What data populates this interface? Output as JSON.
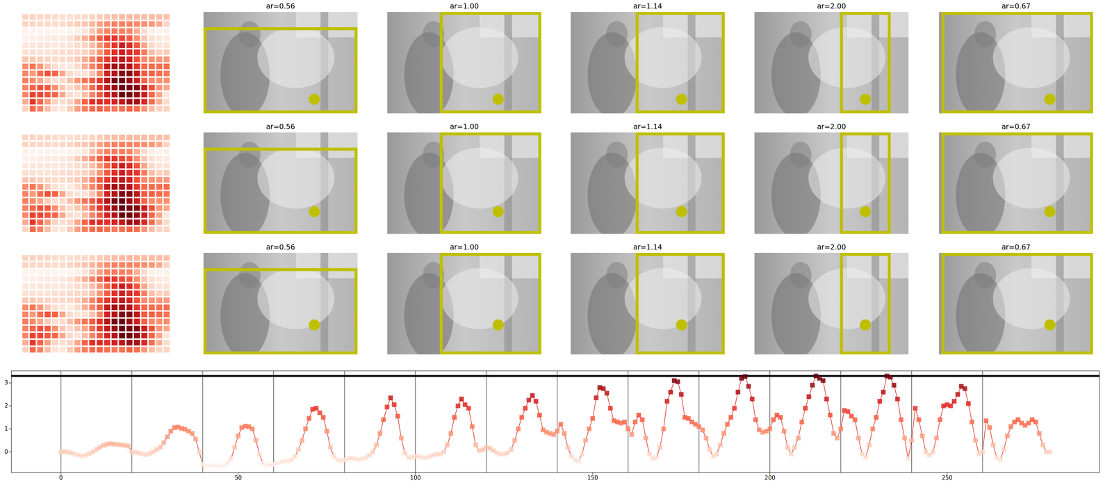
{
  "figure": {
    "color": "#bfbf00",
    "panels": [
      {
        "title": "ar=0.56",
        "ar": 0.56
      },
      {
        "title": "ar=1.00",
        "ar": 1.0
      },
      {
        "title": "ar=1.14",
        "ar": 1.14
      },
      {
        "title": "ar=2.00",
        "ar": 2.0
      },
      {
        "title": "ar=0.67",
        "ar": 0.67
      }
    ],
    "image_rows": [
      {
        "point": [
          0.72,
          0.86
        ]
      },
      {
        "point": [
          0.72,
          0.78
        ]
      },
      {
        "point": [
          0.72,
          0.71
        ]
      }
    ]
  },
  "chart_data": [
    {
      "type": "heatmap",
      "color": "Reds",
      "cells": [
        [
          0,
          0.02,
          -0.02,
          -0.05,
          -0.1,
          -0.15,
          -0.18,
          -0.15,
          -0.08,
          0,
          0.1,
          0.2,
          0.28,
          0.33,
          0.35,
          0.33,
          0.32,
          0.3,
          0.28,
          0.25
        ],
        [
          0,
          -0.02,
          -0.06,
          -0.1,
          -0.12,
          -0.08,
          0,
          0.1,
          0.2,
          0.4,
          0.65,
          0.9,
          1.05,
          1.08,
          1.02,
          0.98,
          0.9,
          0.8,
          0.55,
          0
        ],
        [
          -0.55,
          -0.6,
          -0.6,
          -0.6,
          -0.62,
          -0.65,
          -0.6,
          -0.5,
          -0.3,
          0.2,
          0.7,
          1.05,
          1.12,
          1.1,
          1.0,
          0.5,
          -0.1,
          -0.5,
          -0.6,
          -0.55
        ],
        [
          -0.55,
          -0.5,
          -0.45,
          -0.4,
          -0.4,
          -0.35,
          -0.2,
          0.1,
          0.5,
          1.0,
          1.45,
          1.85,
          1.9,
          1.7,
          1.5,
          0.9,
          0.2,
          -0.2,
          -0.35,
          -0.4
        ],
        [
          -0.35,
          -0.3,
          -0.28,
          -0.3,
          -0.35,
          -0.3,
          -0.25,
          -0.15,
          0,
          0.3,
          0.8,
          1.4,
          1.95,
          2.35,
          2.05,
          1.55,
          0.6,
          -0.05,
          -0.25,
          -0.25
        ],
        [
          -0.2,
          -0.2,
          -0.25,
          -0.25,
          -0.2,
          -0.15,
          -0.1,
          -0.1,
          0,
          0.3,
          0.8,
          1.5,
          2.0,
          2.3,
          2.05,
          1.9,
          1.1,
          0.3,
          0.05,
          0.1
        ],
        [
          0.2,
          0.15,
          0.05,
          -0.05,
          -0.1,
          -0.1,
          -0.05,
          0.1,
          0.5,
          1.0,
          1.5,
          1.9,
          2.25,
          2.45,
          2.2,
          1.6,
          0.95,
          0.85,
          0.8,
          0.75
        ],
        [
          0.9,
          1.2,
          0.8,
          0.2,
          -0.2,
          -0.35,
          -0.4,
          -0.1,
          0.5,
          1.0,
          1.45,
          2.35,
          2.8,
          2.75,
          2.55,
          1.9,
          1.35,
          1.3,
          1.25,
          1.3
        ],
        [
          1.0,
          0.75,
          1.3,
          1.6,
          1.4,
          0.6,
          -0.1,
          -0.3,
          -0.25,
          0.2,
          1.0,
          2.2,
          2.6,
          3.1,
          3.05,
          2.5,
          1.5,
          1.45,
          1.3,
          1.2
        ],
        [
          1.1,
          0.95,
          0.6,
          0.1,
          -0.2,
          -0.1,
          0.3,
          0.8,
          1.2,
          1.5,
          1.9,
          2.6,
          3.2,
          3.28,
          2.85,
          2.3,
          1.4,
          0.95,
          0.85,
          0.9
        ],
        [
          1.0,
          1.4,
          1.6,
          1.5,
          0.9,
          0.2,
          -0.1,
          0.2,
          0.6,
          1.3,
          1.9,
          2.4,
          2.9,
          3.3,
          3.2,
          3.1,
          2.3,
          1.6,
          0.8,
          0.6
        ],
        [
          1.0,
          1.8,
          1.75,
          1.55,
          1.4,
          0.6,
          -0.1,
          -0.25,
          0.3,
          1.0,
          1.5,
          2.2,
          2.6,
          3.3,
          3.25,
          2.9,
          2.3,
          1.4,
          0.6,
          -0.3
        ],
        [
          0.5,
          1.9,
          1.4,
          0.7,
          0,
          -0.15,
          0,
          0.6,
          1.4,
          2.0,
          2.05,
          2.0,
          2.2,
          2.5,
          2.85,
          2.75,
          2.1,
          1.3,
          0.5,
          -0.1
        ],
        [
          0,
          1.35,
          1.05,
          0.3,
          -0.25,
          -0.35,
          0.1,
          0.7,
          1.1,
          1.3,
          1.4,
          1.25,
          1.15,
          1.25,
          1.4,
          1.3,
          0.8,
          0.3,
          0,
          0
        ]
      ]
    },
    {
      "type": "line",
      "color": "#d7301f",
      "marker": "square",
      "xlim": [
        -14,
        293
      ],
      "xticks": [
        0,
        50,
        100,
        150,
        200,
        250
      ],
      "ylim": [
        -0.9,
        3.52
      ],
      "yticks": [
        0,
        1,
        2,
        3
      ],
      "vlines": [
        0,
        20,
        40,
        60,
        80,
        100,
        120,
        140,
        160,
        180,
        200,
        220,
        240,
        260
      ],
      "hlines": [
        3.3
      ],
      "x": [
        0,
        1,
        2,
        3,
        4,
        5,
        6,
        7,
        8,
        9,
        10,
        11,
        12,
        13,
        14,
        15,
        16,
        17,
        18,
        19,
        20,
        21,
        22,
        23,
        24,
        25,
        26,
        27,
        28,
        29,
        30,
        31,
        32,
        33,
        34,
        35,
        36,
        37,
        38,
        39,
        40,
        41,
        42,
        43,
        44,
        45,
        46,
        47,
        48,
        49,
        50,
        51,
        52,
        53,
        54,
        55,
        56,
        57,
        58,
        59,
        60,
        61,
        62,
        63,
        64,
        65,
        66,
        67,
        68,
        69,
        70,
        71,
        72,
        73,
        74,
        75,
        76,
        77,
        78,
        79,
        80,
        81,
        82,
        83,
        84,
        85,
        86,
        87,
        88,
        89,
        90,
        91,
        92,
        93,
        94,
        95,
        96,
        97,
        98,
        99,
        100,
        101,
        102,
        103,
        104,
        105,
        106,
        107,
        108,
        109,
        110,
        111,
        112,
        113,
        114,
        115,
        116,
        117,
        118,
        119,
        120,
        121,
        122,
        123,
        124,
        125,
        126,
        127,
        128,
        129,
        130,
        131,
        132,
        133,
        134,
        135,
        136,
        137,
        138,
        139,
        140,
        141,
        142,
        143,
        144,
        145,
        146,
        147,
        148,
        149,
        150,
        151,
        152,
        153,
        154,
        155,
        156,
        157,
        158,
        159,
        160,
        161,
        162,
        163,
        164,
        165,
        166,
        167,
        168,
        169,
        170,
        171,
        172,
        173,
        174,
        175,
        176,
        177,
        178,
        179,
        180,
        181,
        182,
        183,
        184,
        185,
        186,
        187,
        188,
        189,
        190,
        191,
        192,
        193,
        194,
        195,
        196,
        197,
        198,
        199,
        200,
        201,
        202,
        203,
        204,
        205,
        206,
        207,
        208,
        209,
        210,
        211,
        212,
        213,
        214,
        215,
        216,
        217,
        218,
        219,
        220,
        221,
        222,
        223,
        224,
        225,
        226,
        227,
        228,
        229,
        230,
        231,
        232,
        233,
        234,
        235,
        236,
        237,
        238,
        239,
        240,
        241,
        242,
        243,
        244,
        245,
        246,
        247,
        248,
        249,
        250,
        251,
        252,
        253,
        254,
        255,
        256,
        257,
        258,
        259,
        260,
        261,
        262,
        263,
        264,
        265,
        266,
        267,
        268,
        269,
        270,
        271,
        272,
        273,
        274,
        275,
        276,
        277,
        278,
        279
      ],
      "values": [
        0,
        0.02,
        -0.02,
        -0.05,
        -0.1,
        -0.15,
        -0.18,
        -0.15,
        -0.08,
        0,
        0.1,
        0.2,
        0.28,
        0.33,
        0.35,
        0.33,
        0.32,
        0.3,
        0.28,
        0.25,
        0,
        -0.02,
        -0.06,
        -0.1,
        -0.12,
        -0.08,
        0,
        0.1,
        0.2,
        0.4,
        0.65,
        0.9,
        1.05,
        1.08,
        1.02,
        0.98,
        0.9,
        0.8,
        0.55,
        0,
        -0.55,
        -0.6,
        -0.6,
        -0.6,
        -0.62,
        -0.65,
        -0.6,
        -0.5,
        -0.3,
        0.2,
        0.7,
        1.05,
        1.12,
        1.1,
        1.0,
        0.5,
        -0.1,
        -0.5,
        -0.6,
        -0.55,
        -0.55,
        -0.5,
        -0.45,
        -0.4,
        -0.4,
        -0.35,
        -0.2,
        0.1,
        0.5,
        1.0,
        1.45,
        1.85,
        1.9,
        1.7,
        1.5,
        0.9,
        0.2,
        -0.2,
        -0.35,
        -0.4,
        -0.35,
        -0.3,
        -0.28,
        -0.3,
        -0.35,
        -0.3,
        -0.25,
        -0.15,
        0,
        0.3,
        0.8,
        1.4,
        1.95,
        2.35,
        2.05,
        1.55,
        0.6,
        -0.05,
        -0.25,
        -0.25,
        -0.2,
        -0.2,
        -0.25,
        -0.25,
        -0.2,
        -0.15,
        -0.1,
        -0.1,
        0,
        0.3,
        0.8,
        1.5,
        2.0,
        2.3,
        2.05,
        1.9,
        1.1,
        0.3,
        0.05,
        0.1,
        0.2,
        0.15,
        0.05,
        -0.05,
        -0.1,
        -0.1,
        -0.05,
        0.1,
        0.5,
        1.0,
        1.5,
        1.9,
        2.25,
        2.45,
        2.2,
        1.6,
        0.95,
        0.85,
        0.8,
        0.75,
        0.9,
        1.2,
        0.8,
        0.2,
        -0.2,
        -0.35,
        -0.4,
        -0.1,
        0.5,
        1.0,
        1.45,
        2.35,
        2.8,
        2.75,
        2.55,
        1.9,
        1.35,
        1.3,
        1.25,
        1.3,
        1.0,
        0.75,
        1.3,
        1.6,
        1.4,
        0.6,
        -0.1,
        -0.3,
        -0.25,
        0.2,
        1.0,
        2.2,
        2.6,
        3.1,
        3.05,
        2.5,
        1.5,
        1.45,
        1.3,
        1.2,
        1.1,
        0.95,
        0.6,
        0.1,
        -0.2,
        -0.1,
        0.3,
        0.8,
        1.2,
        1.5,
        1.9,
        2.6,
        3.2,
        3.28,
        2.85,
        2.3,
        1.4,
        0.95,
        0.85,
        0.9,
        1.0,
        1.4,
        1.6,
        1.5,
        0.9,
        0.2,
        -0.1,
        0.2,
        0.6,
        1.3,
        1.9,
        2.4,
        2.9,
        3.3,
        3.2,
        3.1,
        2.3,
        1.6,
        0.8,
        0.6,
        1.0,
        1.8,
        1.75,
        1.55,
        1.4,
        0.6,
        -0.1,
        -0.25,
        0.3,
        1.0,
        1.5,
        2.2,
        2.6,
        3.3,
        3.25,
        2.9,
        2.3,
        1.4,
        0.6,
        -0.3,
        0.5,
        1.9,
        1.4,
        0.7,
        0,
        -0.15,
        0,
        0.6,
        1.4,
        2.0,
        2.05,
        2.0,
        2.2,
        2.5,
        2.85,
        2.75,
        2.1,
        1.3,
        0.5,
        -0.1,
        0,
        1.35,
        1.05,
        0.3,
        -0.25,
        -0.35,
        0.1,
        0.7,
        1.1,
        1.3,
        1.4,
        1.25,
        1.15,
        1.25,
        1.4,
        1.3,
        0.8,
        0.3,
        0,
        0
      ]
    }
  ]
}
